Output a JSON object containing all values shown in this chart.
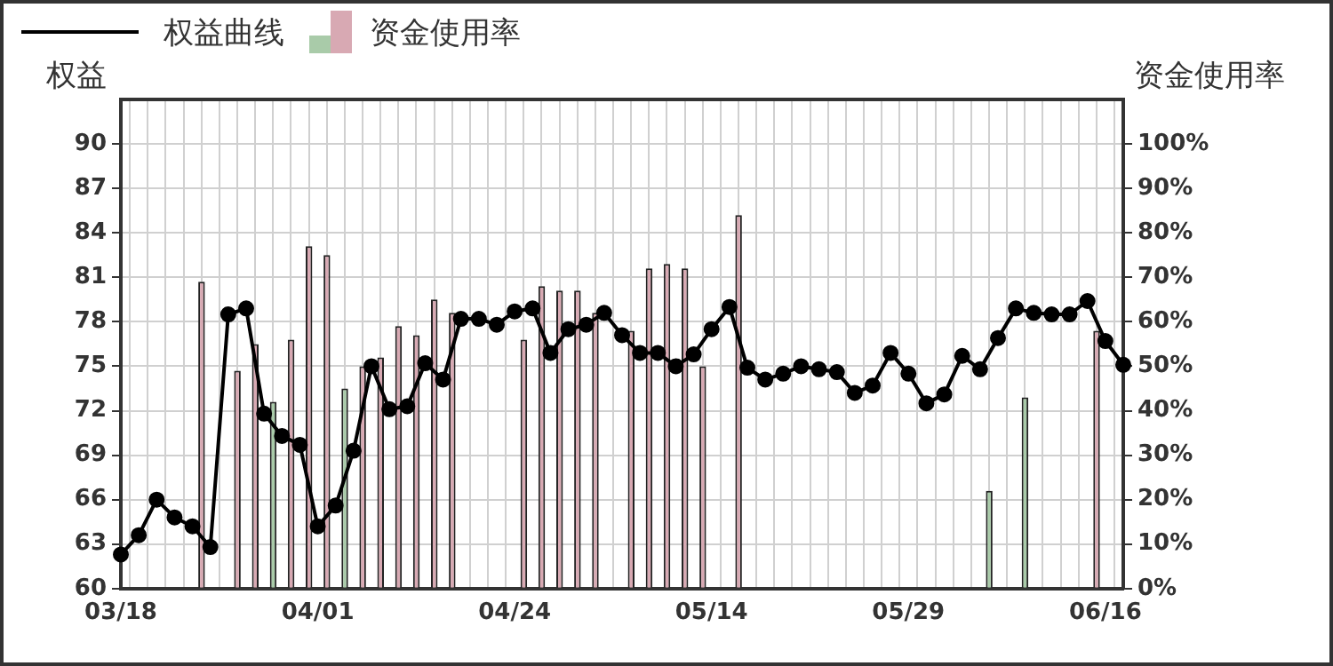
{
  "chart_data": {
    "type": "line",
    "ylabel": "权益",
    "y2label": "资金使用率",
    "categories": [
      "03/18",
      null,
      null,
      null,
      null,
      null,
      null,
      null,
      null,
      null,
      null,
      "04/01",
      null,
      null,
      null,
      null,
      null,
      null,
      null,
      null,
      null,
      null,
      "04/24",
      null,
      null,
      null,
      null,
      null,
      null,
      null,
      null,
      null,
      null,
      "05/14",
      null,
      null,
      null,
      null,
      null,
      null,
      null,
      null,
      null,
      null,
      "05/29",
      null,
      null,
      null,
      null,
      null,
      null,
      null,
      null,
      null,
      null,
      "06/16",
      null
    ],
    "series": [
      {
        "name": "资金使用率",
        "type": "bar",
        "axis": "y2",
        "colors": [
          "#d8a9b3",
          "#d8a9b3",
          "#d8a9b3",
          "#d8a9b3",
          "#d8a9b3",
          "#d8a9b3",
          "#d8a9b3",
          "#d8a9b3",
          "#d8a9b3",
          "#a9cba9",
          "#d8a9b3",
          "#d8a9b3",
          "#d8a9b3",
          "#a9cba9",
          "#d8a9b3",
          "#d8a9b3",
          "#d8a9b3",
          "#d8a9b3",
          "#d8a9b3",
          "#d8a9b3",
          "#d8a9b3",
          "#d8a9b3",
          "#d8a9b3",
          "#d8a9b3",
          "#d8a9b3",
          "#d8a9b3",
          "#d8a9b3",
          "#d8a9b3",
          "#d8a9b3",
          "#d8a9b3",
          "#d8a9b3",
          "#d8a9b3",
          "#d8a9b3",
          "#d8a9b3",
          "#d8a9b3",
          "#d8a9b3",
          "#d8a9b3",
          "#d8a9b3",
          "#d8a9b3",
          "#d8a9b3",
          "#d8a9b3",
          "#d8a9b3",
          "#d8a9b3",
          "#d8a9b3",
          "#d8a9b3",
          "#d8a9b3",
          "#d8a9b3",
          "#d8a9b3",
          "#d8a9b3",
          "#a9cba9",
          "#d8a9b3",
          "#a9cba9",
          "#d8a9b3",
          "#d8a9b3",
          "#d8a9b3",
          "#d8a9b3",
          "#d8a9b3"
        ],
        "values": [
          null,
          null,
          null,
          null,
          null,
          69,
          null,
          49,
          55,
          42,
          56,
          77,
          75,
          45,
          50,
          52,
          59,
          57,
          65,
          62,
          null,
          null,
          null,
          56,
          68,
          67,
          67,
          62,
          null,
          58,
          72,
          73,
          72,
          50,
          null,
          84,
          null,
          null,
          null,
          null,
          null,
          null,
          null,
          null,
          null,
          null,
          null,
          null,
          null,
          22,
          null,
          43,
          null,
          null,
          null,
          58,
          null
        ]
      },
      {
        "name": "权益曲线",
        "axis": "y",
        "color": "#000000",
        "values": [
          62.3,
          63.6,
          66.0,
          64.8,
          64.2,
          62.8,
          78.5,
          78.9,
          71.8,
          70.3,
          69.7,
          64.2,
          65.6,
          69.3,
          75.0,
          72.1,
          72.3,
          75.2,
          74.1,
          78.2,
          78.2,
          77.8,
          78.7,
          78.9,
          75.9,
          77.5,
          77.8,
          78.6,
          77.1,
          75.9,
          75.9,
          75.0,
          75.8,
          77.5,
          79.0,
          74.9,
          74.1,
          74.5,
          75.0,
          74.8,
          74.6,
          73.2,
          73.7,
          75.9,
          74.5,
          72.5,
          73.1,
          75.7,
          74.8,
          76.9,
          78.9,
          78.6,
          78.5,
          78.5,
          79.4,
          76.7,
          75.1
        ]
      }
    ],
    "ylim": [
      60,
      93
    ],
    "yticks": [
      60,
      63,
      66,
      69,
      72,
      75,
      78,
      81,
      84,
      87,
      90
    ],
    "y2lim": [
      0,
      110
    ],
    "y2ticks": [
      {
        "value": 0,
        "label": "0%"
      },
      {
        "value": 10,
        "label": "10%"
      },
      {
        "value": 20,
        "label": "20%"
      },
      {
        "value": 30,
        "label": "30%"
      },
      {
        "value": 40,
        "label": "40%"
      },
      {
        "value": 50,
        "label": "50%"
      },
      {
        "value": 60,
        "label": "60%"
      },
      {
        "value": 70,
        "label": "70%"
      },
      {
        "value": 80,
        "label": "80%"
      },
      {
        "value": 90,
        "label": "90%"
      },
      {
        "value": 100,
        "label": "100%"
      }
    ],
    "grid": true,
    "legend": "top left",
    "marker": "circle",
    "line_style": "solid"
  }
}
